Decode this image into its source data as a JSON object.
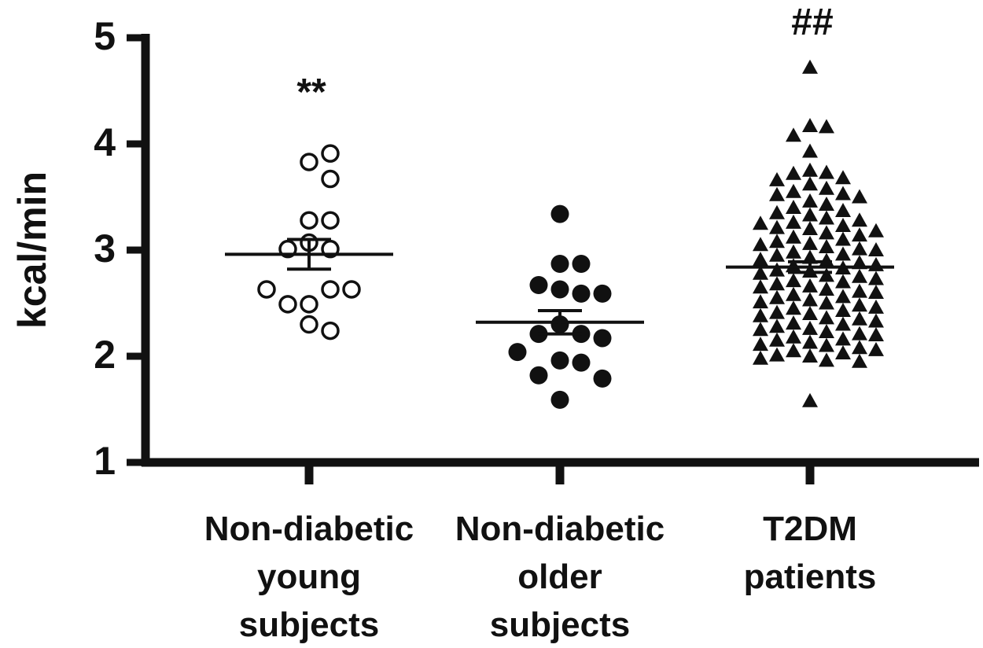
{
  "chart_data": {
    "type": "dotplot",
    "ylabel": "kcal/min",
    "ylim": [
      1,
      5
    ],
    "yticks": [
      1,
      2,
      3,
      4,
      5
    ],
    "color": "#111111",
    "categories": [
      [
        "Non-diabetic",
        "young",
        "subjects"
      ],
      [
        "Non-diabetic",
        "older",
        "subjects"
      ],
      [
        "T2DM",
        "patients"
      ]
    ],
    "groups": [
      {
        "marker": "circle-open",
        "annotation": "**",
        "mean": 2.96,
        "sem": 0.14,
        "values": [
          3.83,
          3.91,
          3.67,
          3.28,
          3.28,
          3.07,
          3.01,
          3.01,
          2.49,
          2.63,
          2.49,
          2.63,
          2.63,
          2.3,
          2.24
        ]
      },
      {
        "marker": "circle-filled",
        "mean": 2.32,
        "sem": 0.11,
        "values": [
          3.34,
          2.87,
          2.87,
          2.63,
          2.59,
          2.67,
          2.59,
          2.3,
          2.21,
          2.21,
          2.17,
          1.96,
          1.94,
          2.04,
          1.82,
          1.79,
          1.59
        ]
      },
      {
        "marker": "triangle",
        "annotation": "##",
        "mean": 2.84,
        "sem": 0.05,
        "values": [
          4.72,
          4.17,
          4.16,
          4.08,
          3.93,
          3.75,
          3.73,
          3.72,
          3.68,
          3.66,
          3.62,
          3.58,
          3.55,
          3.53,
          3.52,
          3.5,
          3.46,
          3.43,
          3.4,
          3.37,
          3.35,
          3.33,
          3.3,
          3.28,
          3.26,
          3.25,
          3.23,
          3.21,
          3.2,
          3.18,
          3.16,
          3.14,
          3.12,
          3.1,
          3.08,
          3.06,
          3.05,
          3.03,
          3.01,
          3.0,
          2.98,
          2.96,
          2.95,
          2.93,
          2.91,
          2.9,
          2.88,
          2.86,
          2.85,
          2.83,
          2.81,
          2.8,
          2.78,
          2.76,
          2.75,
          2.73,
          2.71,
          2.7,
          2.68,
          2.66,
          2.65,
          2.63,
          2.61,
          2.6,
          2.58,
          2.56,
          2.55,
          2.53,
          2.51,
          2.5,
          2.48,
          2.46,
          2.45,
          2.43,
          2.41,
          2.4,
          2.38,
          2.36,
          2.35,
          2.33,
          2.31,
          2.3,
          2.28,
          2.26,
          2.25,
          2.23,
          2.21,
          2.2,
          2.18,
          2.16,
          2.15,
          2.13,
          2.11,
          2.1,
          2.08,
          2.06,
          2.05,
          2.03,
          2.01,
          2.0,
          1.98,
          1.96,
          1.95,
          1.58
        ]
      }
    ]
  }
}
